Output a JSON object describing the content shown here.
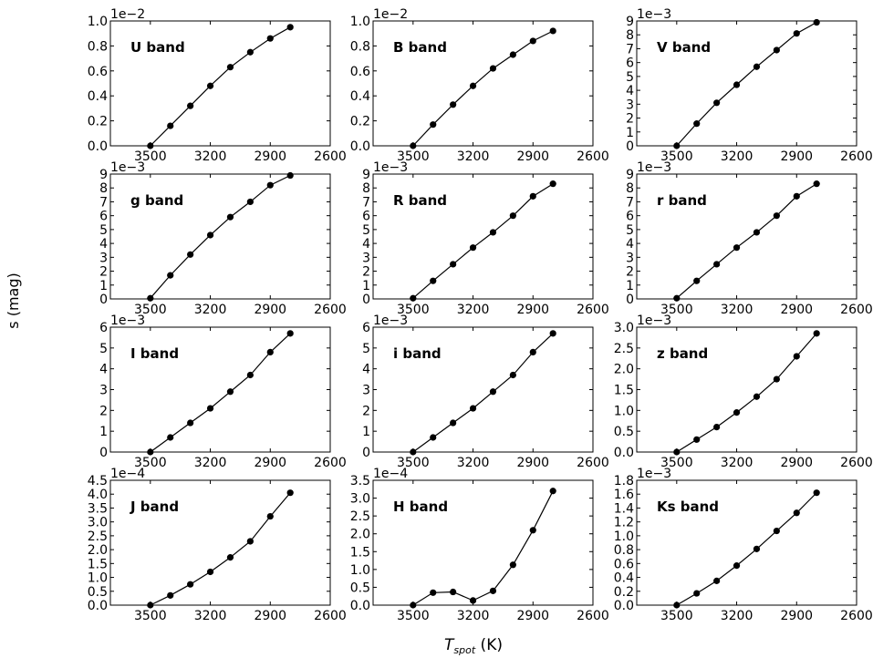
{
  "figure": {
    "ylabel": "s (mag)",
    "xlabel_main": "T",
    "xlabel_sub": "spot",
    "xlabel_unit": " (K)"
  },
  "chart_data": [
    {
      "type": "line",
      "title": "U band",
      "exponent": "1e−2",
      "x": [
        3500,
        3400,
        3300,
        3200,
        3100,
        3000,
        2900,
        2800
      ],
      "values": [
        0.0,
        0.16,
        0.32,
        0.48,
        0.63,
        0.75,
        0.86,
        0.95
      ],
      "xlim": [
        3700,
        2600
      ],
      "ylim": [
        0,
        1.0
      ],
      "xticks": [
        3500,
        3200,
        2900,
        2600
      ],
      "yticks": [
        "0.0",
        "0.2",
        "0.4",
        "0.6",
        "0.8",
        "1.0"
      ],
      "grid": false
    },
    {
      "type": "line",
      "title": "B band",
      "exponent": "1e−2",
      "x": [
        3500,
        3400,
        3300,
        3200,
        3100,
        3000,
        2900,
        2800
      ],
      "values": [
        0.0,
        0.17,
        0.33,
        0.48,
        0.62,
        0.73,
        0.84,
        0.92
      ],
      "xlim": [
        3700,
        2600
      ],
      "ylim": [
        0,
        1.0
      ],
      "xticks": [
        3500,
        3200,
        2900,
        2600
      ],
      "yticks": [
        "0.0",
        "0.2",
        "0.4",
        "0.6",
        "0.8",
        "1.0"
      ],
      "grid": false
    },
    {
      "type": "line",
      "title": "V band",
      "exponent": "1e−3",
      "x": [
        3500,
        3400,
        3300,
        3200,
        3100,
        3000,
        2900,
        2800
      ],
      "values": [
        0.0,
        1.6,
        3.1,
        4.4,
        5.7,
        6.9,
        8.1,
        8.9
      ],
      "xlim": [
        3700,
        2600
      ],
      "ylim": [
        0,
        9
      ],
      "xticks": [
        3500,
        3200,
        2900,
        2600
      ],
      "yticks": [
        "0",
        "1",
        "2",
        "3",
        "4",
        "5",
        "6",
        "7",
        "8",
        "9"
      ],
      "grid": false
    },
    {
      "type": "line",
      "title": "g band",
      "exponent": "1e−3",
      "x": [
        3500,
        3400,
        3300,
        3200,
        3100,
        3000,
        2900,
        2800
      ],
      "values": [
        0.05,
        1.7,
        3.2,
        4.6,
        5.9,
        7.0,
        8.2,
        8.9
      ],
      "xlim": [
        3700,
        2600
      ],
      "ylim": [
        0,
        9
      ],
      "xticks": [
        3500,
        3200,
        2900,
        2600
      ],
      "yticks": [
        "0",
        "1",
        "2",
        "3",
        "4",
        "5",
        "6",
        "7",
        "8",
        "9"
      ],
      "grid": false
    },
    {
      "type": "line",
      "title": "R band",
      "exponent": "1e−3",
      "x": [
        3500,
        3400,
        3300,
        3200,
        3100,
        3000,
        2900,
        2800
      ],
      "values": [
        0.05,
        1.3,
        2.5,
        3.7,
        4.8,
        6.0,
        7.4,
        8.3
      ],
      "xlim": [
        3700,
        2600
      ],
      "ylim": [
        0,
        9
      ],
      "xticks": [
        3500,
        3200,
        2900,
        2600
      ],
      "yticks": [
        "0",
        "1",
        "2",
        "3",
        "4",
        "5",
        "6",
        "7",
        "8",
        "9"
      ],
      "grid": false
    },
    {
      "type": "line",
      "title": "r band",
      "exponent": "1e−3",
      "x": [
        3500,
        3400,
        3300,
        3200,
        3100,
        3000,
        2900,
        2800
      ],
      "values": [
        0.05,
        1.3,
        2.5,
        3.7,
        4.8,
        6.0,
        7.4,
        8.3
      ],
      "xlim": [
        3700,
        2600
      ],
      "ylim": [
        0,
        9
      ],
      "xticks": [
        3500,
        3200,
        2900,
        2600
      ],
      "yticks": [
        "0",
        "1",
        "2",
        "3",
        "4",
        "5",
        "6",
        "7",
        "8",
        "9"
      ],
      "grid": false
    },
    {
      "type": "line",
      "title": "I band",
      "exponent": "1e−3",
      "x": [
        3500,
        3400,
        3300,
        3200,
        3100,
        3000,
        2900,
        2800
      ],
      "values": [
        0.0,
        0.7,
        1.4,
        2.1,
        2.9,
        3.7,
        4.8,
        5.7
      ],
      "xlim": [
        3700,
        2600
      ],
      "ylim": [
        0,
        6
      ],
      "xticks": [
        3500,
        3200,
        2900,
        2600
      ],
      "yticks": [
        "0",
        "1",
        "2",
        "3",
        "4",
        "5",
        "6"
      ],
      "grid": false
    },
    {
      "type": "line",
      "title": "i band",
      "exponent": "1e−3",
      "x": [
        3500,
        3400,
        3300,
        3200,
        3100,
        3000,
        2900,
        2800
      ],
      "values": [
        0.0,
        0.7,
        1.4,
        2.1,
        2.9,
        3.7,
        4.8,
        5.7
      ],
      "xlim": [
        3700,
        2600
      ],
      "ylim": [
        0,
        6
      ],
      "xticks": [
        3500,
        3200,
        2900,
        2600
      ],
      "yticks": [
        "0",
        "1",
        "2",
        "3",
        "4",
        "5",
        "6"
      ],
      "grid": false
    },
    {
      "type": "line",
      "title": "z band",
      "exponent": "1e−3",
      "x": [
        3500,
        3400,
        3300,
        3200,
        3100,
        3000,
        2900,
        2800
      ],
      "values": [
        0.0,
        0.3,
        0.6,
        0.95,
        1.33,
        1.75,
        2.3,
        2.85
      ],
      "xlim": [
        3700,
        2600
      ],
      "ylim": [
        0,
        3.0
      ],
      "xticks": [
        3500,
        3200,
        2900,
        2600
      ],
      "yticks": [
        "0.0",
        "0.5",
        "1.0",
        "1.5",
        "2.0",
        "2.5",
        "3.0"
      ],
      "grid": false
    },
    {
      "type": "line",
      "title": "J band",
      "exponent": "1e−4",
      "x": [
        3500,
        3400,
        3300,
        3200,
        3100,
        3000,
        2900,
        2800
      ],
      "values": [
        0.0,
        0.35,
        0.75,
        1.2,
        1.72,
        2.3,
        3.2,
        4.05
      ],
      "xlim": [
        3700,
        2600
      ],
      "ylim": [
        0,
        4.5
      ],
      "xticks": [
        3500,
        3200,
        2900,
        2600
      ],
      "yticks": [
        "0.0",
        "0.5",
        "1.0",
        "1.5",
        "2.0",
        "2.5",
        "3.0",
        "3.5",
        "4.0",
        "4.5"
      ],
      "grid": false
    },
    {
      "type": "line",
      "title": "H band",
      "exponent": "1e−4",
      "x": [
        3500,
        3400,
        3300,
        3200,
        3100,
        3000,
        2900,
        2800
      ],
      "values": [
        0.0,
        0.35,
        0.37,
        0.13,
        0.4,
        1.13,
        2.1,
        3.2
      ],
      "xlim": [
        3700,
        2600
      ],
      "ylim": [
        0,
        3.5
      ],
      "xticks": [
        3500,
        3200,
        2900,
        2600
      ],
      "yticks": [
        "0.0",
        "0.5",
        "1.0",
        "1.5",
        "2.0",
        "2.5",
        "3.0",
        "3.5"
      ],
      "grid": false
    },
    {
      "type": "line",
      "title": "Ks band",
      "exponent": "1e−3",
      "x": [
        3500,
        3400,
        3300,
        3200,
        3100,
        3000,
        2900,
        2800
      ],
      "values": [
        0.0,
        0.17,
        0.35,
        0.57,
        0.81,
        1.07,
        1.33,
        1.62
      ],
      "xlim": [
        3700,
        2600
      ],
      "ylim": [
        0,
        1.8
      ],
      "xticks": [
        3500,
        3200,
        2900,
        2600
      ],
      "yticks": [
        "0.0",
        "0.2",
        "0.4",
        "0.6",
        "0.8",
        "1.0",
        "1.2",
        "1.4",
        "1.6",
        "1.8"
      ],
      "grid": false
    }
  ]
}
